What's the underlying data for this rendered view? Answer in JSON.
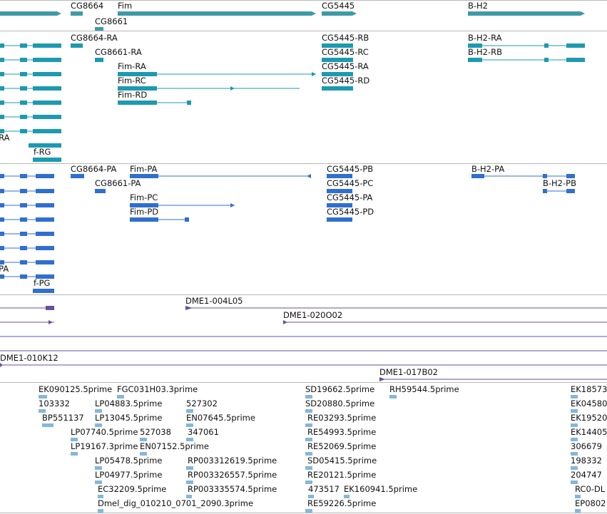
{
  "colors": {
    "gene": "#3f9aa8",
    "transcript": "#1c9ab0",
    "protein": "#2f6fd0",
    "clone": "#6a4f9c",
    "est": "#86b6d8",
    "separator": "#b8b8b8"
  },
  "tracks": {
    "genes": {
      "labels": [
        "CG8664",
        "Fim",
        "CG5445",
        "B-H2",
        "CG8661"
      ]
    },
    "transcripts": {
      "labels": [
        "CG8664-RA",
        "CG5445-RB",
        "B-H2-RA",
        "CG8661-RA",
        "CG5445-RC",
        "B-H2-RB",
        "Fim-RA",
        "CG5445-RA",
        "Fim-RC",
        "CG5445-RD",
        "Fim-RD",
        "-RA",
        "f-RG"
      ]
    },
    "proteins": {
      "labels": [
        "CG8664-PA",
        "Fim-PA",
        "CG5445-PB",
        "B-H2-PA",
        "CG8661-PA",
        "CG5445-PC",
        "B-H2-PB",
        "Fim-PC",
        "CG5445-PA",
        "Fim-PD",
        "CG5445-PD",
        "-PA",
        "f-PG"
      ]
    },
    "clones": {
      "labels": [
        "DME1-004L05",
        "DME1-020O02",
        "DME1-010K12",
        "DME1-017B02"
      ]
    },
    "ests": {
      "labels": [
        "EK090125.5prime",
        "FGC031H03.3prime",
        "SD19662.5prime",
        "RH59544.5prime",
        "EK18573",
        "103332",
        "LP04883.5prime",
        "527302",
        "SD20880.5prime",
        "EK04580",
        "BP551137",
        "LP13045.5prime",
        "EN07645.5prime",
        "RE03293.5prime",
        "EK19520",
        "LP07740.5prime",
        "527038",
        "347061",
        "RE54993.5prime",
        "EK14405",
        "LP19167.3prime",
        "EN07152.5prime",
        "RE52069.5prime",
        "306679",
        "LP05478.5prime",
        "RP003312619.5prime",
        "SD05415.5prime",
        "198332",
        "LP04977.5prime",
        "RP003326557.5prime",
        "RE20121.5prime",
        "204747",
        "EC32209.5prime",
        "RP003335574.5prime",
        "473517",
        "EK160941.5prime",
        "RC0-DL",
        "Dmel_dig_010210_0701_2090.3prime",
        "RE59226.5prime",
        "EP0802"
      ]
    }
  }
}
